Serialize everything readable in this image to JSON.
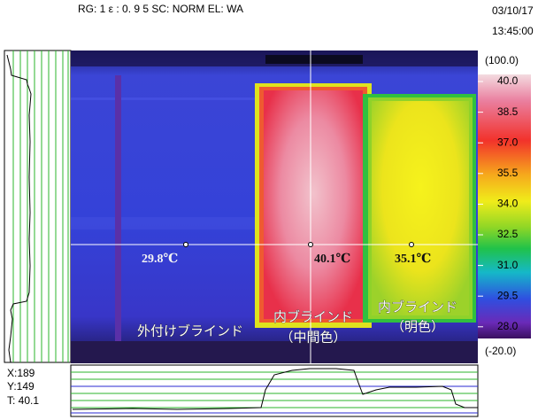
{
  "header": {
    "status": "RG: 1   ε : 0. 9 5   SC: NORM   EL: WA",
    "date": "03/10/17",
    "time": "13:45:00"
  },
  "scale": {
    "max": "(100.0)",
    "labels": [
      "40.0",
      "38.5",
      "37.0",
      "35.5",
      "34.0",
      "32.5",
      "31.0",
      "29.5",
      "28.0"
    ],
    "min": "(-20.0)"
  },
  "image": {
    "spots": [
      "29.8℃",
      "40.1℃",
      "35.1℃"
    ],
    "annotations": [
      "外付けブラインド",
      "内ブラインド",
      "（中間色）",
      "内ブラインド",
      "（明色）"
    ]
  },
  "cursor": {
    "x": "X:189",
    "y": "Y:149",
    "t": "T: 40.1"
  }
}
